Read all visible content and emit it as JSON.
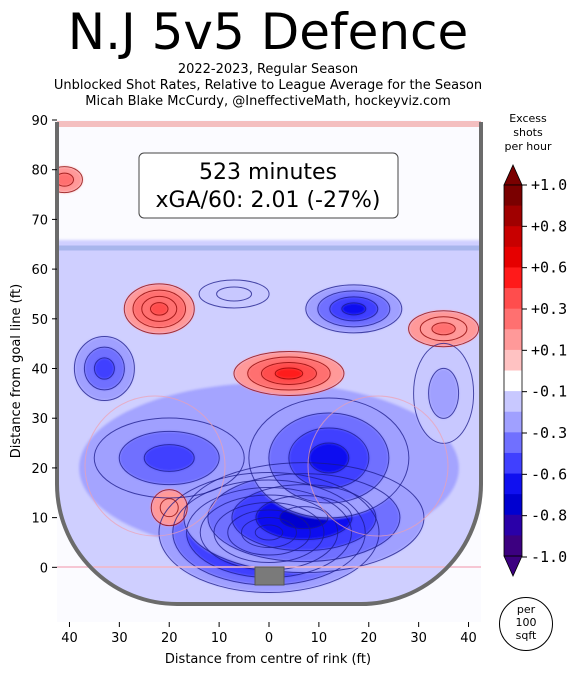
{
  "header": {
    "title": "N.J 5v5 Defence",
    "subtitle_line1": "2022-2023, Regular Season",
    "subtitle_line2": "Unblocked Shot Rates, Relative to League Average for the Season",
    "subtitle_line3": "Micah Blake McCurdy, @IneffectiveMath, hockeyviz.com"
  },
  "annotation": {
    "line1": "523 minutes",
    "line2": "xGA/60: 2.01 (-27%)"
  },
  "colorbar": {
    "label_line1": "Excess",
    "label_line2": "shots",
    "label_line3": "per hour",
    "ticks": [
      "+1.0",
      "+0.8",
      "+0.6",
      "+0.3",
      "+0.1",
      "-0.1",
      "-0.3",
      "-0.6",
      "-0.8",
      "-1.0"
    ],
    "colors": [
      "#7a0000",
      "#a00000",
      "#c80000",
      "#e60000",
      "#ff1a1a",
      "#ff4d4d",
      "#ff7070",
      "#ff9999",
      "#ffc2c2",
      "#ffffff",
      "#c8c8ff",
      "#a0a0ff",
      "#7070ff",
      "#4040ff",
      "#1010f0",
      "#0000d0",
      "#2a00a8",
      "#3c0080"
    ],
    "unit_line1": "per",
    "unit_line2": "100",
    "unit_line3": "sqft"
  },
  "chart_data": {
    "type": "heatmap",
    "title": "N.J 5v5 Defence",
    "xlabel": "Distance from centre of rink (ft)",
    "ylabel": "Distance from goal line (ft)",
    "xlim": [
      -42.5,
      42.5
    ],
    "ylim": [
      -11,
      90
    ],
    "xticks": [
      "40",
      "30",
      "20",
      "10",
      "0",
      "10",
      "20",
      "30",
      "40"
    ],
    "xtick_values": [
      -40,
      -30,
      -20,
      -10,
      0,
      10,
      20,
      30,
      40
    ],
    "yticks": [
      "0",
      "10",
      "20",
      "30",
      "40",
      "50",
      "60",
      "70",
      "80",
      "90"
    ],
    "ytick_values": [
      0,
      10,
      20,
      30,
      40,
      50,
      60,
      70,
      80,
      90
    ],
    "value_range": [
      -1.0,
      1.0
    ],
    "regions": [
      {
        "x": 0,
        "y": 7,
        "excess": -1.0
      },
      {
        "x": 7,
        "y": 10,
        "excess": -0.8
      },
      {
        "x": 12,
        "y": 22,
        "excess": -0.6
      },
      {
        "x": -20,
        "y": 22,
        "excess": -0.5
      },
      {
        "x": -33,
        "y": 40,
        "excess": -0.5
      },
      {
        "x": 17,
        "y": 52,
        "excess": -0.6
      },
      {
        "x": -7,
        "y": 55,
        "excess": -0.2
      },
      {
        "x": 35,
        "y": 35,
        "excess": -0.3
      },
      {
        "x": -22,
        "y": 52,
        "excess": 0.4
      },
      {
        "x": 4,
        "y": 39,
        "excess": 0.5
      },
      {
        "x": 35,
        "y": 48,
        "excess": 0.3
      },
      {
        "x": -20,
        "y": 12,
        "excess": 0.2
      },
      {
        "x": -41,
        "y": 78,
        "excess": 0.3
      }
    ]
  }
}
